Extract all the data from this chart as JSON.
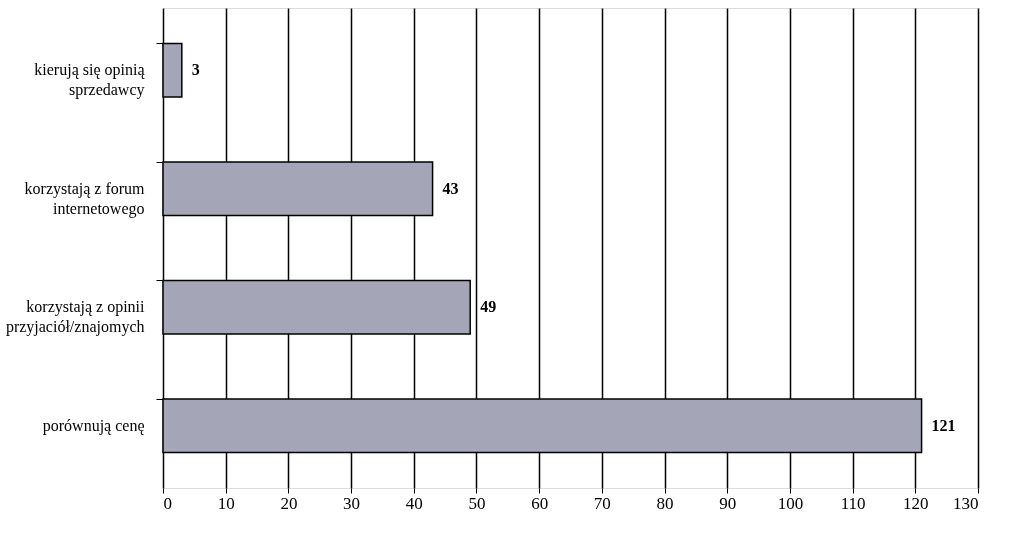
{
  "chart_data": {
    "type": "bar",
    "orientation": "horizontal",
    "categories": [
      "kierują się opinią sprzedawcy",
      "korzystają z forum internetowego",
      "korzystają z opinii przyjaciół/znajomych",
      "porównują cenę"
    ],
    "values": [
      3,
      43,
      49,
      121
    ],
    "color": "#a4a6b8",
    "xlim": [
      0,
      130
    ],
    "xticks": [
      0,
      10,
      20,
      30,
      40,
      50,
      60,
      70,
      80,
      90,
      100,
      110,
      120,
      130
    ],
    "grid": "x",
    "data_labels": true
  }
}
